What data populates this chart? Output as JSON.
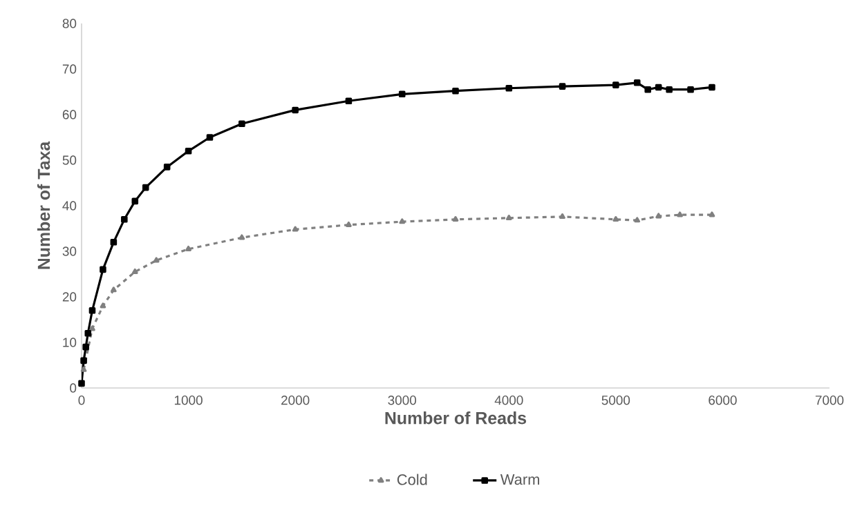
{
  "chart_data": {
    "type": "line",
    "xlabel": "Number of Reads",
    "ylabel": "Number of Taxa",
    "xlim": [
      0,
      7000
    ],
    "ylim": [
      0,
      80
    ],
    "xticks": [
      0,
      1000,
      2000,
      3000,
      4000,
      5000,
      6000,
      7000
    ],
    "yticks": [
      0,
      10,
      20,
      30,
      40,
      50,
      60,
      70,
      80
    ],
    "grid": false,
    "legend": "bottom",
    "series": [
      {
        "name": "Cold",
        "color": "#808080",
        "marker": "triangle",
        "line_style": "dashed",
        "x": [
          20,
          100,
          200,
          300,
          500,
          700,
          1000,
          1500,
          2000,
          2500,
          3000,
          3500,
          4000,
          4500,
          5000,
          5200,
          5400,
          5600,
          5900
        ],
        "values": [
          4,
          13,
          18,
          21.5,
          25.5,
          28,
          30.5,
          33,
          34.8,
          35.8,
          36.5,
          37,
          37.3,
          37.6,
          37,
          36.8,
          37.7,
          38,
          38
        ]
      },
      {
        "name": "Warm",
        "color": "#000000",
        "marker": "square",
        "line_style": "solid",
        "x": [
          0,
          20,
          40,
          60,
          100,
          200,
          300,
          400,
          500,
          600,
          800,
          1000,
          1200,
          1500,
          2000,
          2500,
          3000,
          3500,
          4000,
          4500,
          5000,
          5200,
          5300,
          5400,
          5500,
          5700,
          5900
        ],
        "values": [
          1,
          6,
          9,
          12,
          17,
          26,
          32,
          37,
          41,
          44,
          48.5,
          52,
          55,
          58,
          61,
          63,
          64.5,
          65.2,
          65.8,
          66.2,
          66.5,
          67,
          65.5,
          66,
          65.5,
          65.5,
          66
        ]
      }
    ]
  }
}
